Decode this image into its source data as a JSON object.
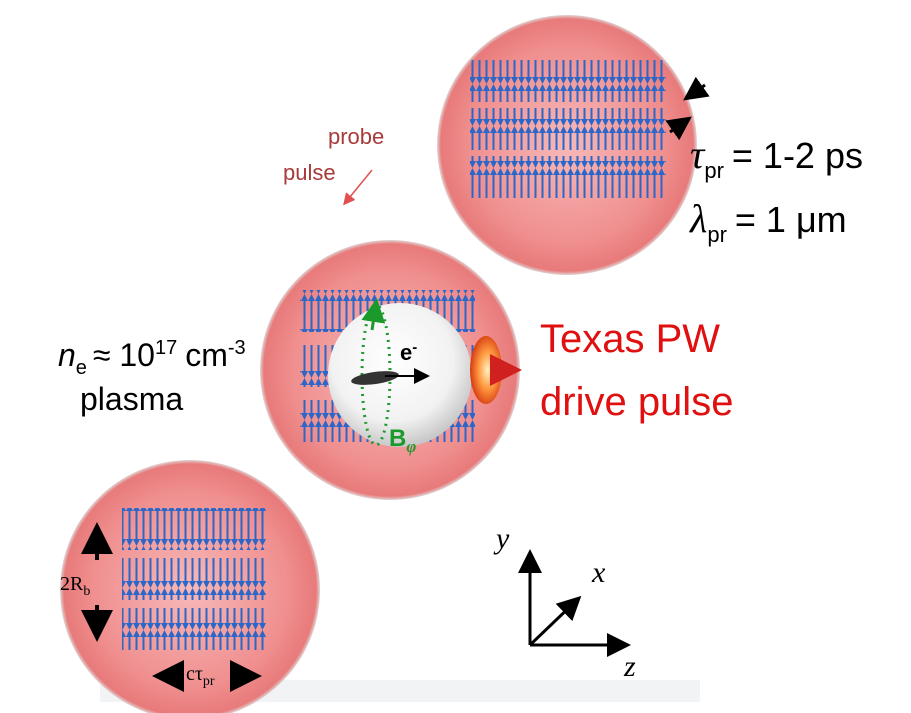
{
  "probe_label": [
    "probe",
    "pulse"
  ],
  "pulse_duration": {
    "symbol": "τ",
    "sub": "pr",
    "value": "= 1-2 ps"
  },
  "wavelength": {
    "symbol": "λ",
    "sub": "pr",
    "value": "= 1 μm"
  },
  "density": {
    "symbol": "n",
    "sub": "e",
    "approx": "≈ 10",
    "exp": "17",
    "unit": "cm",
    "unit_exp": "-3"
  },
  "medium": "plasma",
  "electron": {
    "symbol": "e",
    "sup": "-"
  },
  "field": {
    "symbol": "B",
    "sub": "φ"
  },
  "drive_label": [
    "Texas PW",
    "drive pulse"
  ],
  "bunch_size": {
    "prefix": "2R",
    "sub": "b"
  },
  "bunch_length": {
    "prefix": "cτ",
    "sub": "pr"
  },
  "axes": {
    "y": "y",
    "x": "x",
    "z": "z"
  }
}
